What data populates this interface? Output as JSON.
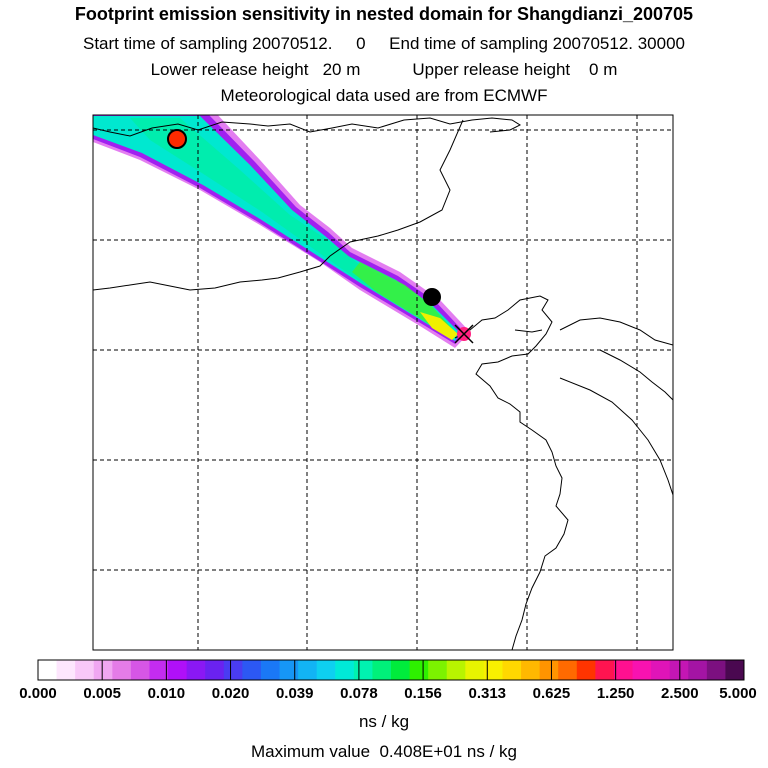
{
  "header": {
    "title": "Footprint emission sensitivity in nested domain for Shangdianzi_200705",
    "sampling": "Start time of sampling 20070512.     0     End time of sampling 20070512. 30000",
    "release": "Lower release height   20 m           Upper release height    0 m",
    "met": "Meteorological data used are from ECMWF"
  },
  "colorbar": {
    "ticks": [
      "0.000",
      "0.005",
      "0.010",
      "0.020",
      "0.039",
      "0.078",
      "0.156",
      "0.313",
      "0.625",
      "1.250",
      "2.500",
      "5.000"
    ],
    "colors": [
      "#ffffff",
      "#fde6fd",
      "#f8c8f8",
      "#f0a6f2",
      "#e47ce8",
      "#d656e6",
      "#c42cf0",
      "#b010f8",
      "#8a18f4",
      "#6a22f0",
      "#4a3cf2",
      "#2c58f4",
      "#1a78f6",
      "#1696f6",
      "#12b4f4",
      "#0ed0f0",
      "#00ead8",
      "#00f2b0",
      "#00f07a",
      "#00ec3c",
      "#2ef000",
      "#7cf200",
      "#b8f400",
      "#e8f400",
      "#f8f000",
      "#ffd800",
      "#ffb800",
      "#ff9400",
      "#ff6a00",
      "#ff3400",
      "#ff1450",
      "#ff1090",
      "#f812b0",
      "#e014b8",
      "#c416b4",
      "#a414a4",
      "#7c1080",
      "#4a0850"
    ],
    "units": "ns / kg",
    "max_value": "Maximum value  0.408E+01 ns / kg"
  },
  "map": {
    "markers": [
      {
        "name": "release-location-marker",
        "color": "#ff2a00"
      },
      {
        "name": "plume-centroid-marker",
        "color": "#000000"
      },
      {
        "name": "receptor-site-marker",
        "color": "#ff00aa"
      }
    ]
  }
}
